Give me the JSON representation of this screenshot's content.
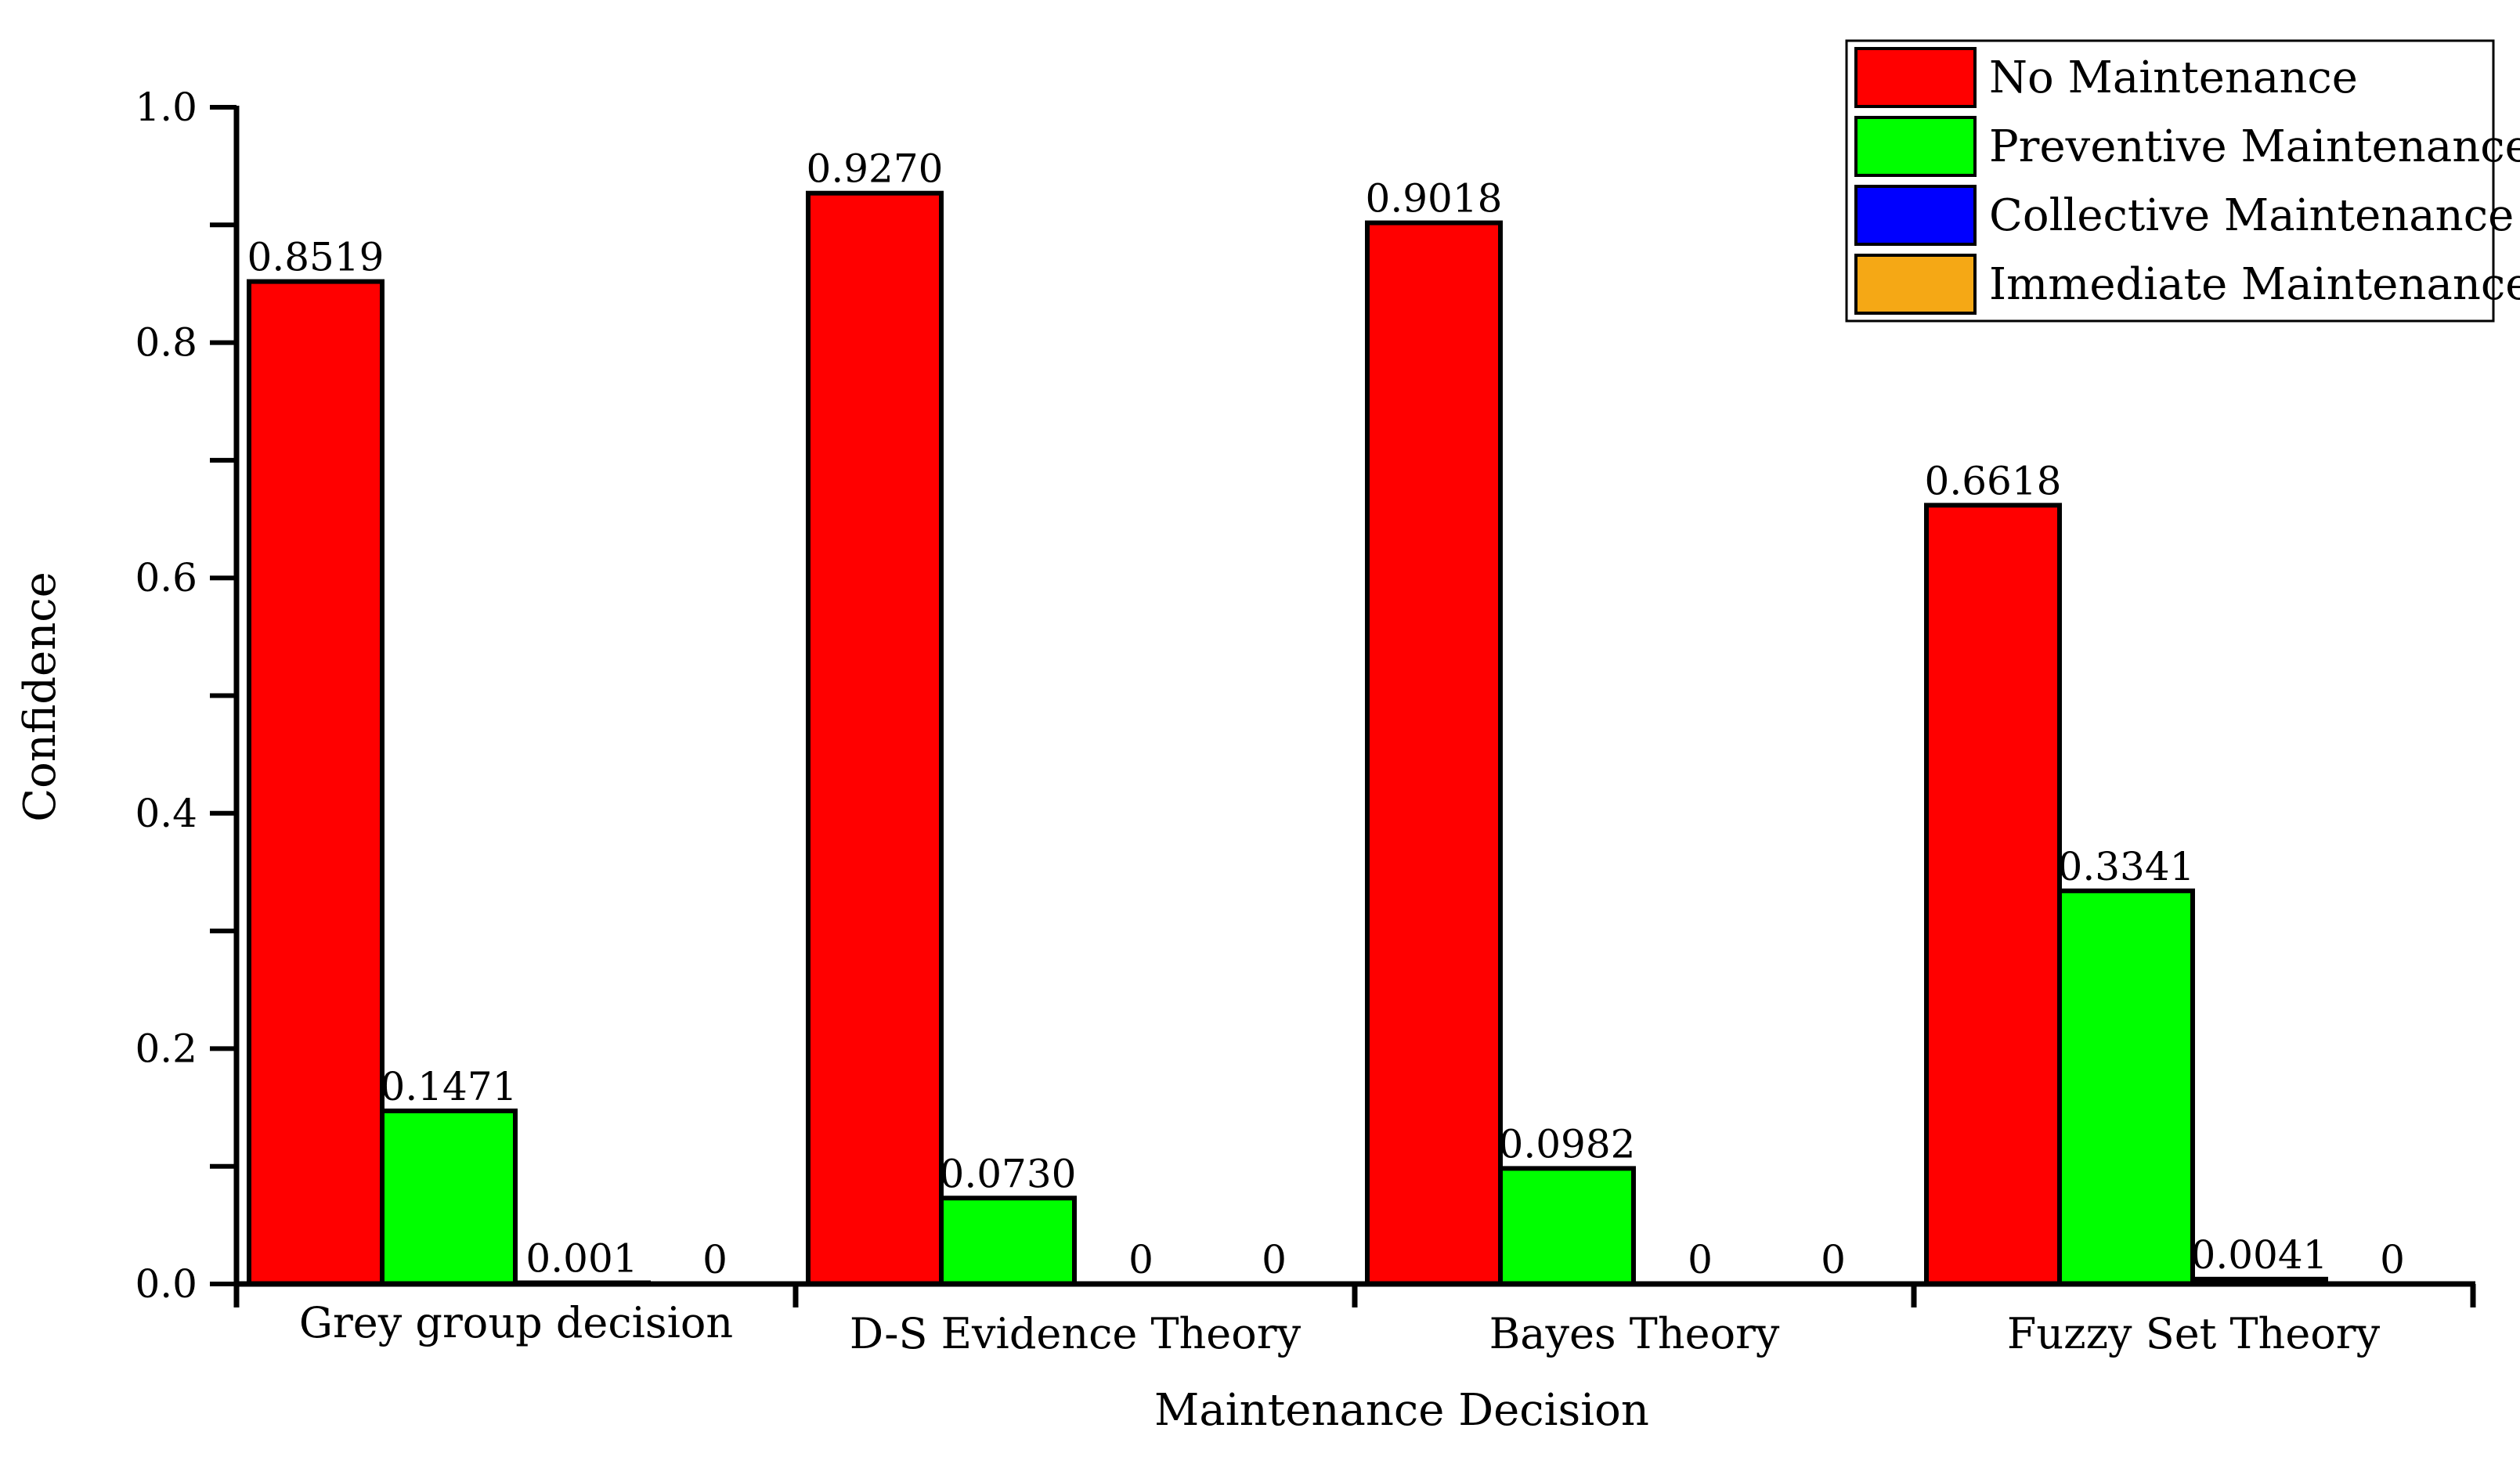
{
  "chart_data": {
    "type": "bar",
    "title": "",
    "xlabel": "Maintenance Decision",
    "ylabel": "Confidence",
    "ylim": [
      0,
      1.0
    ],
    "yticks": [
      0.0,
      0.2,
      0.4,
      0.6,
      0.8,
      1.0
    ],
    "ytick_labels": [
      "0.0",
      "0.2",
      "0.4",
      "0.6",
      "0.8",
      "1.0"
    ],
    "minor_ytick_step": 0.1,
    "grid": false,
    "legend_position": "top-right",
    "categories": [
      "Grey group decision",
      "D-S Evidence Theory",
      "Bayes Theory",
      "Fuzzy Set Theory"
    ],
    "series": [
      {
        "name": "No Maintenance",
        "color": "#ff0000",
        "values": [
          0.8519,
          0.927,
          0.9018,
          0.6618
        ],
        "labels": [
          "0.8519",
          "0.9270",
          "0.9018",
          "0.6618"
        ]
      },
      {
        "name": "Preventive Maintenance",
        "color": "#00ff00",
        "values": [
          0.1471,
          0.073,
          0.0982,
          0.3341
        ],
        "labels": [
          "0.1471",
          "0.0730",
          "0.0982",
          "0.3341"
        ]
      },
      {
        "name": "Collective Maintenance",
        "color": "#0000ff",
        "values": [
          0.001,
          0,
          0,
          0.0041
        ],
        "labels": [
          "0.001",
          "0",
          "0",
          "0.0041"
        ]
      },
      {
        "name": "Immediate Maintenance",
        "color": "#f5a815",
        "values": [
          0,
          0,
          0,
          0
        ],
        "labels": [
          "0",
          "0",
          "0",
          "0"
        ]
      }
    ]
  }
}
